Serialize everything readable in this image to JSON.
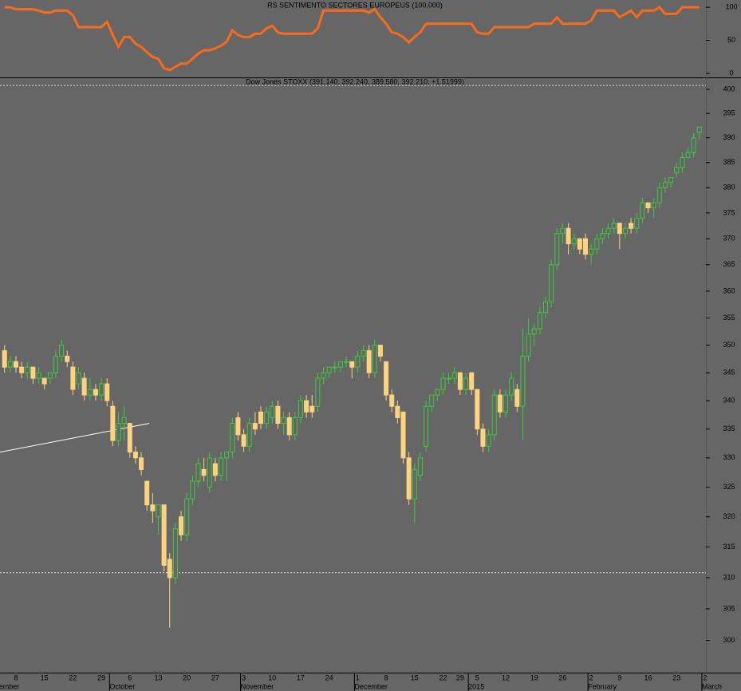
{
  "chart_data": [
    {
      "type": "line",
      "title": "RS SENTIMENTO SECTORES EUROPEUS (100.000)",
      "color": "#ff6a1a",
      "ylim": [
        -6,
        111
      ],
      "yticks": [
        0,
        50,
        100
      ],
      "values": [
        100,
        100,
        97,
        97,
        97,
        97,
        95,
        92,
        92,
        95,
        95,
        95,
        88,
        70,
        70,
        70,
        70,
        70,
        78,
        58,
        40,
        55,
        55,
        45,
        40,
        32,
        25,
        22,
        8,
        5,
        10,
        15,
        15,
        22,
        30,
        35,
        35,
        38,
        42,
        48,
        65,
        58,
        55,
        55,
        60,
        60,
        68,
        72,
        62,
        60,
        60,
        60,
        60,
        60,
        60,
        68,
        95,
        95,
        95,
        95,
        95,
        95,
        95,
        95,
        92,
        97,
        85,
        75,
        62,
        60,
        55,
        47,
        55,
        62,
        75,
        75,
        75,
        75,
        75,
        75,
        75,
        75,
        75,
        62,
        60,
        60,
        70,
        70,
        70,
        70,
        70,
        70,
        70,
        75,
        75,
        75,
        75,
        85,
        75,
        75,
        75,
        75,
        75,
        80,
        95,
        95,
        95,
        95,
        85,
        90,
        95,
        85,
        95,
        95,
        95,
        100,
        90,
        90,
        90,
        100,
        100,
        100,
        100
      ]
    },
    {
      "type": "candlestick",
      "title": "Dow Jones STOXX (391.140, 392.240, 389.580, 392.210, +1.51999)",
      "log_scale": true,
      "ylim": [
        295,
        402
      ],
      "yticks": [
        300,
        305,
        310,
        315,
        320,
        325,
        330,
        335,
        340,
        345,
        350,
        355,
        360,
        365,
        370,
        375,
        380,
        385,
        390,
        395,
        400
      ],
      "up_color": "#3ccc3c",
      "down_color": "#ffd27f",
      "hlines": [
        400.8,
        310.8
      ],
      "trendline": {
        "x": [
          -0.8,
          25.4
        ],
        "y": [
          331,
          336
        ]
      },
      "categories": [
        null,
        null,
        "8",
        null,
        null,
        null,
        null,
        "15",
        null,
        null,
        null,
        null,
        "22",
        null,
        null,
        null,
        null,
        "29",
        null,
        null,
        null,
        null,
        "6",
        null,
        null,
        null,
        null,
        "13",
        null,
        null,
        null,
        null,
        "20",
        null,
        null,
        null,
        null,
        "27",
        null,
        null,
        null,
        null,
        "3",
        null,
        null,
        null,
        null,
        "10",
        null,
        null,
        null,
        null,
        "17",
        null,
        null,
        null,
        null,
        "24",
        null,
        null,
        null,
        null,
        "1",
        null,
        null,
        null,
        null,
        "8",
        null,
        null,
        null,
        null,
        "15",
        null,
        null,
        null,
        null,
        "22",
        null,
        null,
        "29",
        null,
        null,
        "5",
        null,
        null,
        null,
        null,
        "12",
        null,
        null,
        null,
        null,
        "19",
        null,
        null,
        null,
        null,
        "26",
        null,
        null,
        null,
        null,
        "2",
        null,
        null,
        null,
        null,
        "9",
        null,
        null,
        null,
        null,
        "16",
        null,
        null,
        null,
        null,
        "23",
        null,
        null,
        null,
        null,
        "2"
      ],
      "months": [
        {
          "label": "September",
          "index": -3
        },
        {
          "label": "October",
          "index": 19
        },
        {
          "label": "November",
          "index": 42
        },
        {
          "label": "December",
          "index": 62
        },
        {
          "label": "2015",
          "index": 82
        },
        {
          "label": "February",
          "index": 103
        },
        {
          "label": "March",
          "index": 123
        }
      ],
      "open": [
        349,
        346,
        347,
        346,
        345,
        346,
        344,
        344,
        344,
        345,
        348,
        348,
        346,
        343,
        344,
        341,
        342,
        341,
        343,
        339,
        333,
        336,
        336,
        331,
        330,
        326,
        322,
        320,
        322,
        313,
        310,
        320,
        317,
        323,
        326,
        328,
        325,
        329,
        327,
        330,
        331,
        337,
        334,
        332,
        336,
        338,
        336,
        337,
        339,
        336,
        337,
        334,
        337,
        340,
        339,
        339,
        344,
        345,
        346,
        346,
        347,
        347,
        346,
        348,
        349,
        345,
        350,
        347,
        341,
        339,
        338,
        330,
        323,
        327,
        332,
        339,
        341,
        342,
        344,
        344,
        345,
        342,
        345,
        342,
        335,
        332,
        334,
        341,
        338,
        341,
        342,
        339,
        348,
        352,
        353,
        356,
        358,
        365,
        371,
        372,
        369,
        370,
        370,
        367,
        368,
        370,
        371,
        372,
        373,
        371,
        373,
        372,
        374,
        377,
        376,
        377,
        380,
        381,
        383,
        384,
        386,
        387,
        391.14,
        null
      ],
      "high": [
        350,
        348,
        348,
        347,
        347,
        346,
        346,
        344,
        345,
        349,
        351,
        349,
        347,
        346,
        345,
        344,
        343,
        344,
        344,
        340,
        338,
        339,
        336,
        332,
        331,
        326,
        324,
        322,
        322,
        314,
        319,
        321,
        324,
        327,
        330,
        330,
        331,
        330,
        331,
        331,
        337,
        338,
        335,
        337,
        338,
        339,
        339,
        340,
        340,
        338,
        338,
        338,
        341,
        341,
        341,
        345,
        346,
        346,
        347,
        347,
        348,
        347,
        349,
        350,
        350,
        351,
        350,
        347,
        342,
        340,
        338,
        331,
        329,
        331,
        340,
        341,
        342,
        345,
        345,
        346,
        345,
        345,
        345,
        342,
        336,
        335,
        342,
        342,
        342,
        345,
        343,
        353,
        355,
        354,
        357,
        359,
        366,
        372,
        373,
        373,
        371,
        370,
        371,
        369,
        371,
        372,
        373,
        374,
        373,
        373,
        374,
        375,
        378,
        377,
        378,
        381,
        382,
        382,
        385,
        387,
        388,
        391,
        392.24,
        null
      ],
      "low": [
        345,
        345,
        345,
        344,
        344,
        343,
        343,
        342,
        343,
        344,
        347,
        346,
        341,
        342,
        340,
        340,
        340,
        340,
        339,
        332,
        332,
        333,
        330,
        329,
        327,
        321,
        319,
        317,
        311,
        302,
        309,
        316,
        316,
        322,
        325,
        326,
        324,
        326,
        326,
        326,
        330,
        333,
        331,
        331,
        334,
        335,
        335,
        336,
        335,
        334,
        333,
        333,
        336,
        337,
        337,
        338,
        343,
        344,
        345,
        345,
        346,
        344,
        345,
        347,
        344,
        344,
        347,
        340,
        338,
        336,
        329,
        322,
        319,
        326,
        331,
        338,
        340,
        341,
        343,
        343,
        341,
        341,
        341,
        334,
        331,
        331,
        333,
        337,
        337,
        340,
        338,
        333,
        347,
        350,
        352,
        355,
        357,
        364,
        369,
        367,
        368,
        367,
        366,
        365,
        367,
        369,
        370,
        371,
        368,
        370,
        371,
        371,
        373,
        375,
        374,
        376,
        379,
        380,
        382,
        383,
        386,
        386,
        389.58,
        null
      ],
      "close": [
        346,
        347,
        346,
        345,
        346,
        344,
        345,
        343,
        345,
        348,
        350,
        347,
        342,
        345,
        341,
        342,
        341,
        343,
        340,
        333,
        336,
        337,
        331,
        330,
        328,
        322,
        321,
        322,
        312,
        310,
        318,
        317,
        323,
        326,
        329,
        327,
        330,
        327,
        330,
        331,
        336,
        334,
        332,
        336,
        335,
        336,
        338,
        339,
        336,
        337,
        334,
        337,
        340,
        338,
        338,
        344,
        345,
        346,
        346,
        347,
        347,
        346,
        348,
        349,
        345,
        350,
        348,
        341,
        339,
        337,
        330,
        323,
        328,
        330,
        339,
        341,
        342,
        344,
        344,
        345,
        342,
        344,
        342,
        335,
        332,
        334,
        341,
        338,
        341,
        344,
        339,
        348,
        352,
        353,
        356,
        358,
        365,
        371,
        372,
        369,
        370,
        368,
        367,
        368,
        370,
        371,
        372,
        373,
        371,
        372,
        372,
        374,
        377,
        376,
        377,
        380,
        381,
        382,
        384,
        386,
        387,
        390,
        392.21,
        null
      ]
    }
  ]
}
